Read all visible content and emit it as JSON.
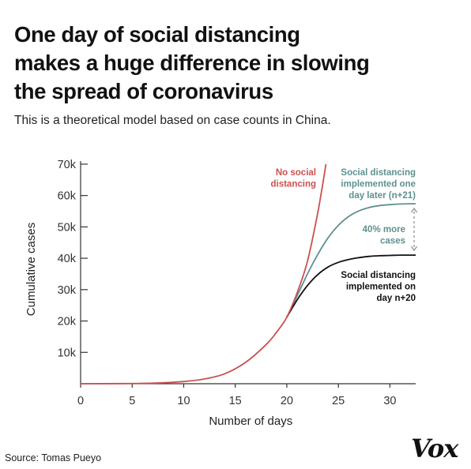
{
  "title_lines": [
    "One day of social distancing",
    "makes a huge difference in slowing",
    "the spread of coronavirus"
  ],
  "subtitle": "This is a theoretical model based on case counts in China.",
  "source": "Source: Tomas Pueyo",
  "logo": "Vox",
  "colors": {
    "no_distancing": "#c9514f",
    "n21": "#5e9190",
    "n20": "#111111",
    "axis": "#333333",
    "annotation_teal": "#5e9190",
    "annotation_dash": "#888888"
  },
  "chart_data": {
    "type": "line",
    "xlabel": "Number of days",
    "ylabel": "Cumulative cases",
    "xlim": [
      0,
      32.5
    ],
    "ylim": [
      0,
      73000
    ],
    "xticks": [
      0,
      5,
      10,
      15,
      20,
      25,
      30
    ],
    "yticks": [
      10000,
      20000,
      30000,
      40000,
      50000,
      60000,
      70000
    ],
    "ytick_labels": [
      "10k",
      "20k",
      "30k",
      "40k",
      "50k",
      "60k",
      "70k"
    ],
    "grid": false,
    "series": [
      {
        "key": "no_distancing",
        "labels": [
          "No social",
          "distancing"
        ],
        "x": [
          0,
          4,
          6,
          8,
          10,
          12,
          14,
          16,
          18,
          19,
          20,
          21,
          22,
          23,
          23.8
        ],
        "y": [
          0,
          50,
          120,
          300,
          700,
          1500,
          3200,
          6800,
          12500,
          16400,
          21200,
          29000,
          39000,
          54500,
          70000
        ]
      },
      {
        "key": "n21",
        "labels": [
          "Social distancing",
          "implemented one",
          "day later (n+21)"
        ],
        "x": [
          20,
          21,
          22,
          23,
          24,
          25,
          26,
          27,
          28,
          29,
          30,
          31,
          32.5
        ],
        "y": [
          21200,
          28000,
          35000,
          41200,
          46500,
          50500,
          53300,
          55100,
          56200,
          56800,
          57100,
          57300,
          57400
        ]
      },
      {
        "key": "n20",
        "labels": [
          "Social distancing",
          "implemented on",
          "day n+20"
        ],
        "x": [
          20,
          21,
          22,
          23,
          24,
          25,
          26,
          27,
          28,
          29,
          30,
          31,
          32.5
        ],
        "y": [
          21200,
          26700,
          31300,
          34800,
          37200,
          38700,
          39600,
          40200,
          40600,
          40800,
          40900,
          41000,
          41000
        ]
      }
    ],
    "annotations": [
      {
        "key": "more_cases",
        "lines": [
          "40% more",
          "cases"
        ],
        "x": 32.5,
        "y_from": 41000,
        "y_to": 57400
      }
    ]
  }
}
